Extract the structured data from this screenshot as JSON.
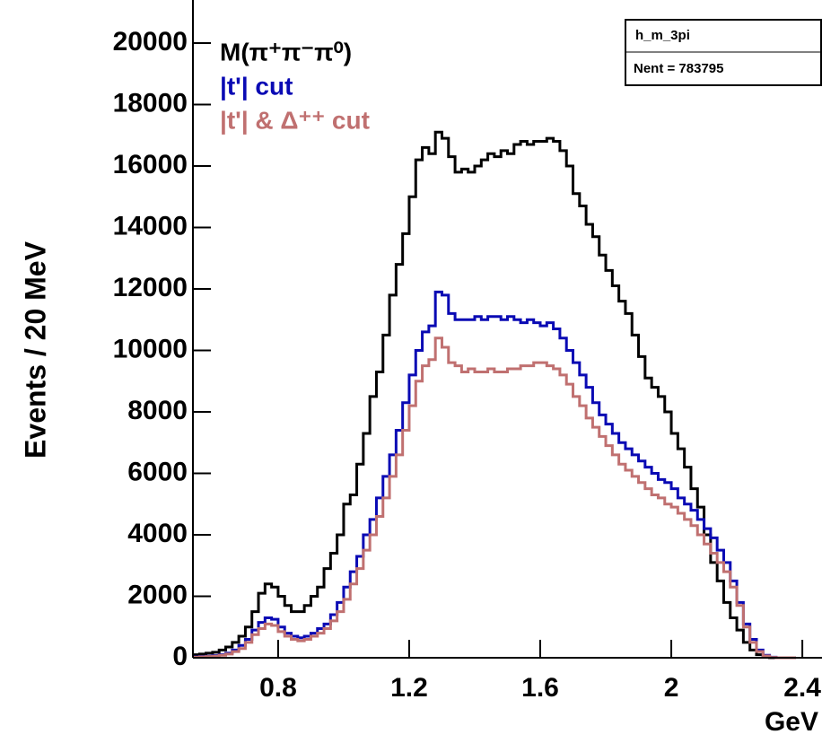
{
  "chart_data": {
    "type": "histogram",
    "y_label": "Events / 20 MeV",
    "x_label": "GeV",
    "stats": {
      "name": "h_m_3pi",
      "entries": "Nent = 783795"
    },
    "bins": [
      0.54,
      0.56,
      0.58,
      0.6,
      0.62,
      0.64,
      0.66,
      0.68,
      0.7,
      0.72,
      0.74,
      0.76,
      0.78,
      0.8,
      0.82,
      0.84,
      0.86,
      0.88,
      0.9,
      0.92,
      0.94,
      0.96,
      0.98,
      1.0,
      1.02,
      1.04,
      1.06,
      1.08,
      1.1,
      1.12,
      1.14,
      1.16,
      1.18,
      1.2,
      1.22,
      1.24,
      1.26,
      1.28,
      1.3,
      1.32,
      1.34,
      1.36,
      1.38,
      1.4,
      1.42,
      1.44,
      1.46,
      1.48,
      1.5,
      1.52,
      1.54,
      1.56,
      1.58,
      1.6,
      1.62,
      1.64,
      1.66,
      1.68,
      1.7,
      1.72,
      1.74,
      1.76,
      1.78,
      1.8,
      1.82,
      1.84,
      1.86,
      1.88,
      1.9,
      1.92,
      1.94,
      1.96,
      1.98,
      2.0,
      2.02,
      2.04,
      2.06,
      2.08,
      2.1,
      2.12,
      2.14,
      2.16,
      2.18,
      2.2,
      2.22,
      2.24,
      2.26,
      2.28,
      2.3,
      2.32,
      2.34,
      2.36,
      2.38
    ],
    "series": [
      {
        "name": "M(π⁺π⁻π⁰)",
        "color": "#000000",
        "values": [
          100,
          120,
          150,
          180,
          250,
          350,
          500,
          700,
          1000,
          1500,
          2100,
          2400,
          2300,
          2000,
          1700,
          1500,
          1500,
          1700,
          2000,
          2300,
          2900,
          3400,
          4000,
          5000,
          5300,
          6300,
          7300,
          8500,
          9300,
          10500,
          11800,
          12800,
          13800,
          15000,
          16200,
          16600,
          16400,
          17100,
          16900,
          16300,
          15800,
          15900,
          15800,
          16000,
          16200,
          16400,
          16300,
          16500,
          16400,
          16700,
          16800,
          16700,
          16800,
          16800,
          16900,
          16800,
          16500,
          16000,
          15100,
          14700,
          14100,
          13700,
          13100,
          12600,
          12100,
          11600,
          11200,
          10500,
          9800,
          9100,
          8800,
          8500,
          8000,
          7300,
          6800,
          6200,
          5500,
          4900,
          4000,
          3100,
          2500,
          1800,
          1300,
          900,
          500,
          250,
          100,
          30,
          0,
          0,
          0,
          0
        ]
      },
      {
        "name": "|t'| cut",
        "color": "#0a0ab4",
        "values": [
          30,
          40,
          50,
          70,
          100,
          150,
          250,
          400,
          600,
          900,
          1150,
          1300,
          1250,
          1000,
          800,
          700,
          650,
          700,
          800,
          950,
          1100,
          1400,
          1800,
          2300,
          2800,
          3300,
          4000,
          4500,
          5200,
          5900,
          6600,
          7400,
          8300,
          9200,
          10000,
          10600,
          10800,
          11900,
          11800,
          11200,
          11000,
          11000,
          11000,
          11100,
          11000,
          11100,
          11100,
          11000,
          11100,
          11000,
          10900,
          11000,
          10900,
          10800,
          10900,
          10700,
          10400,
          10000,
          9600,
          9200,
          8800,
          8300,
          7900,
          7600,
          7300,
          7000,
          6800,
          6600,
          6400,
          6200,
          6000,
          5800,
          5700,
          5500,
          5200,
          5000,
          4800,
          4500,
          4200,
          3900,
          3500,
          3100,
          2500,
          1800,
          1100,
          600,
          250,
          80,
          20,
          0,
          0,
          0
        ]
      },
      {
        "name": "|t'| & Δ⁺⁺ cut",
        "color": "#c07070",
        "values": [
          20,
          30,
          40,
          50,
          80,
          120,
          200,
          300,
          500,
          750,
          950,
          1100,
          1050,
          850,
          700,
          600,
          550,
          600,
          700,
          800,
          950,
          1200,
          1500,
          1900,
          2400,
          2900,
          3500,
          4000,
          4600,
          5200,
          5900,
          6600,
          7400,
          8200,
          9000,
          9500,
          9700,
          10400,
          10100,
          9600,
          9500,
          9300,
          9400,
          9300,
          9300,
          9400,
          9300,
          9300,
          9400,
          9400,
          9500,
          9500,
          9600,
          9600,
          9500,
          9400,
          9200,
          8900,
          8500,
          8200,
          7800,
          7500,
          7200,
          6900,
          6600,
          6300,
          6100,
          5900,
          5700,
          5500,
          5300,
          5200,
          5000,
          4900,
          4700,
          4500,
          4300,
          4000,
          3700,
          3400,
          3100,
          2800,
          2300,
          1700,
          1000,
          500,
          200,
          60,
          10,
          0,
          0,
          0
        ]
      }
    ],
    "xlim": [
      0.54,
      2.46
    ],
    "xticks": [
      0.8,
      1.2,
      1.6,
      2,
      2.4
    ],
    "ylim": [
      0,
      21400
    ],
    "yticks": [
      0,
      2000,
      4000,
      6000,
      8000,
      10000,
      12000,
      14000,
      16000,
      18000,
      20000
    ]
  }
}
